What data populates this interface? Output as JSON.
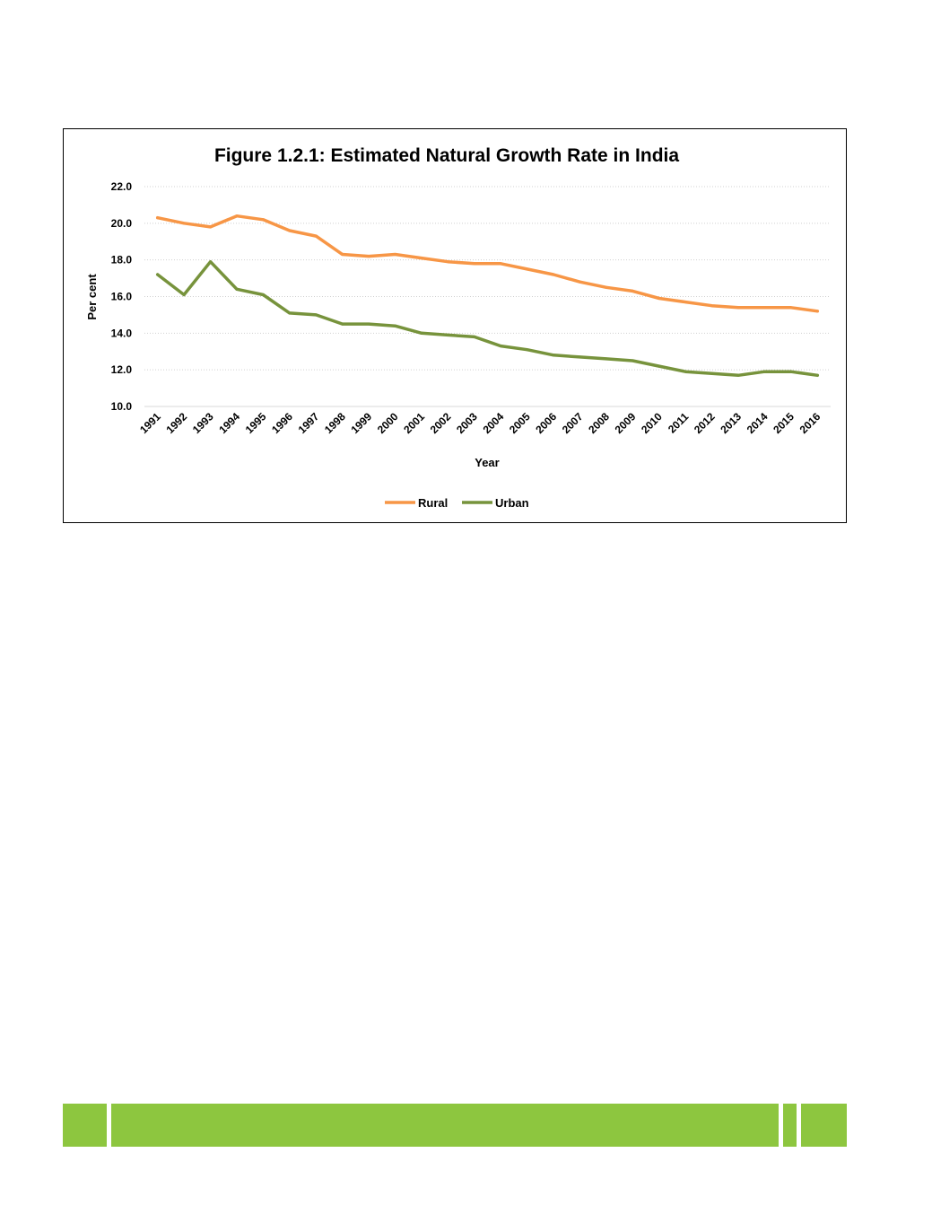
{
  "chart_data": {
    "type": "line",
    "title": "Figure 1.2.1: Estimated Natural Growth Rate in India",
    "xlabel": "Year",
    "ylabel": "Per cent",
    "ylim": [
      10.0,
      22.0
    ],
    "yticks": [
      "10.0",
      "12.0",
      "14.0",
      "16.0",
      "18.0",
      "20.0",
      "22.0"
    ],
    "grid": "horizontal dotted",
    "legend_position": "bottom",
    "categories": [
      "1991",
      "1992",
      "1993",
      "1994",
      "1995",
      "1996",
      "1997",
      "1998",
      "1999",
      "2000",
      "2001",
      "2002",
      "2003",
      "2004",
      "2005",
      "2006",
      "2007",
      "2008",
      "2009",
      "2010",
      "2011",
      "2012",
      "2013",
      "2014",
      "2015",
      "2016"
    ],
    "series": [
      {
        "name": "Rural",
        "color": "#f79646",
        "values": [
          20.3,
          20.0,
          19.8,
          20.4,
          20.2,
          19.6,
          19.3,
          18.3,
          18.2,
          18.3,
          18.1,
          17.9,
          17.8,
          17.8,
          17.5,
          17.2,
          16.8,
          16.5,
          16.3,
          15.9,
          15.7,
          15.5,
          15.4,
          15.4,
          15.4,
          15.2
        ]
      },
      {
        "name": "Urban",
        "color": "#77933c",
        "values": [
          17.2,
          16.1,
          17.9,
          16.4,
          16.1,
          15.1,
          15.0,
          14.5,
          14.5,
          14.4,
          14.0,
          13.9,
          13.8,
          13.3,
          13.1,
          12.8,
          12.7,
          12.6,
          12.5,
          12.2,
          11.9,
          11.8,
          11.7,
          11.9,
          11.9,
          11.7
        ]
      }
    ]
  },
  "footer": {
    "band_color": "#8dc63f"
  }
}
